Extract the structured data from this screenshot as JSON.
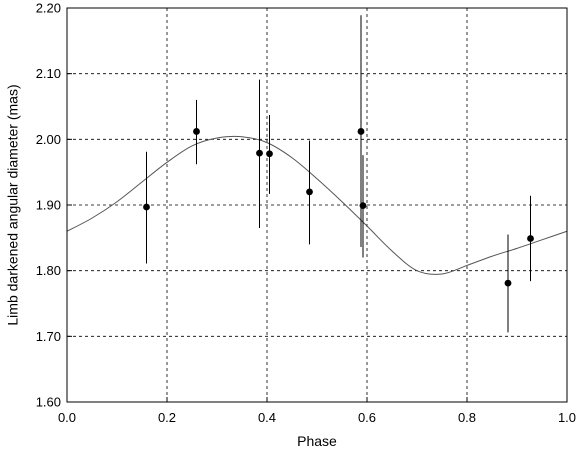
{
  "chart_data": {
    "type": "scatter",
    "xlabel": "Phase",
    "ylabel": "Limb darkened angular diameter (mas)",
    "xlim": [
      0.0,
      1.0
    ],
    "ylim": [
      1.6,
      2.2
    ],
    "x_ticks": [
      0.0,
      0.2,
      0.4,
      0.6,
      0.8,
      1.0
    ],
    "x_tick_labels": [
      "0.0",
      "0.2",
      "0.4",
      "0.6",
      "0.8",
      "1.0"
    ],
    "y_ticks": [
      1.6,
      1.7,
      1.8,
      1.9,
      2.0,
      2.1,
      2.2
    ],
    "y_tick_labels": [
      "1.60",
      "1.70",
      "1.80",
      "1.90",
      "2.00",
      "2.10",
      "2.20"
    ],
    "grid": true,
    "grid_style": "dashed",
    "series": [
      {
        "type": "scatter",
        "points": [
          {
            "x": 0.159,
            "y": 1.897,
            "y_err_low": 1.811,
            "y_err_high": 1.981
          },
          {
            "x": 0.259,
            "y": 2.012,
            "y_err_low": 1.962,
            "y_err_high": 2.06
          },
          {
            "x": 0.385,
            "y": 1.979,
            "y_err_low": 1.865,
            "y_err_high": 2.091
          },
          {
            "x": 0.405,
            "y": 1.978,
            "y_err_low": 1.917,
            "y_err_high": 2.037
          },
          {
            "x": 0.485,
            "y": 1.92,
            "y_err_low": 1.84,
            "y_err_high": 1.998
          },
          {
            "x": 0.588,
            "y": 2.012,
            "y_err_low": 1.836,
            "y_err_high": 2.189
          },
          {
            "x": 0.592,
            "y": 1.899,
            "y_err_low": 1.82,
            "y_err_high": 1.976
          },
          {
            "x": 0.882,
            "y": 1.781,
            "y_err_low": 1.706,
            "y_err_high": 1.855
          },
          {
            "x": 0.927,
            "y": 1.849,
            "y_err_low": 1.784,
            "y_err_high": 1.914
          }
        ]
      },
      {
        "type": "line",
        "x": [
          0.0,
          0.05,
          0.1,
          0.15,
          0.2,
          0.25,
          0.3,
          0.35,
          0.4,
          0.45,
          0.5,
          0.55,
          0.6,
          0.65,
          0.7,
          0.75,
          0.8,
          0.85,
          0.9,
          0.95,
          1.0
        ],
        "y": [
          1.86,
          1.88,
          1.905,
          1.935,
          1.965,
          1.99,
          2.002,
          2.004,
          1.995,
          1.972,
          1.94,
          1.905,
          1.868,
          1.83,
          1.8,
          1.795,
          1.808,
          1.822,
          1.834,
          1.847,
          1.86
        ]
      }
    ],
    "colors": {
      "marker": "#000000",
      "curve": "#555555",
      "grid": "#000000",
      "axis": "#000000"
    }
  }
}
